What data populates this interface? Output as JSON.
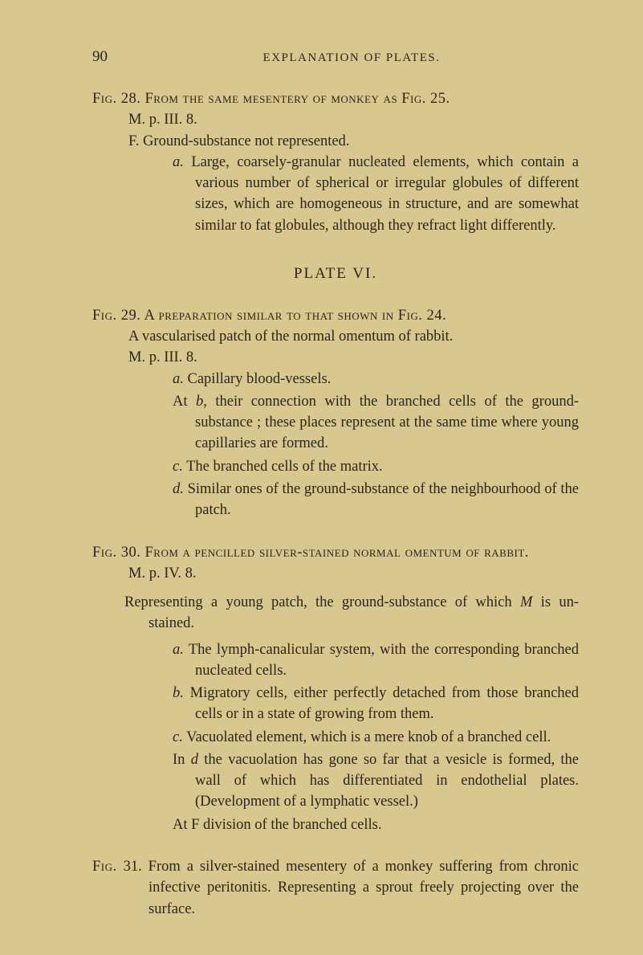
{
  "pageNumber": "90",
  "runningHead": "EXPLANATION OF PLATES.",
  "fig28": {
    "head": "Fig. 28.  From the same mesentery of monkey as Fig. 25.",
    "line2": "M. p. III. 8.",
    "lineF": "F.   Ground-substance not represented.",
    "itemA": "a.  Large, coarsely-granular nucleated elements, which contain a various number of spherical or irregular globules of different sizes, which are homogeneous in structure, and are somewhat similar to fat globules, although they refract light differently."
  },
  "plateTitle": "PLATE VI.",
  "fig29": {
    "head": "Fig. 29.   A preparation similar to that shown in Fig. 24.",
    "line2": "A vascularised patch of the normal omentum of rabbit.",
    "line3": "M. p. III. 8.",
    "itemA": "a.  Capillary blood-vessels.",
    "itemAtB": "At b, their connection with the branched cells of the ground-substance ; these places represent at the same time where young capillaries are formed.",
    "itemC": "c.  The branched cells of the matrix.",
    "itemD": "d.  Similar ones of the ground-substance of the neighbourhood of the patch."
  },
  "fig30": {
    "head": "Fig. 30.   From a pencilled silver-stained normal omentum of rabbit.",
    "line2": "M. p. IV. 8.",
    "rep": "Representing a young patch, the ground-substance of which M is un-stained.",
    "itemA": "a.  The lymph-canalicular system, with the corresponding branched nucleated cells.",
    "itemB": "b.  Migratory cells, either perfectly detached from those branched cells or in a state of growing from them.",
    "itemC": "c.  Vacuolated element, which is a mere knob of a branched cell.",
    "itemIn": "In d the vacuolation has gone so far that a vesicle is formed, the wall of which has differentiated in endothelial plates. (Development of a lymphatic vessel.)",
    "itemAtF": "At F division of the branched cells."
  },
  "fig31": {
    "text": "Fig. 31.  From a silver-stained mesentery of a monkey suffering from chronic infective peritonitis. Representing a sprout freely projecting over the surface."
  },
  "style": {
    "background_color": "#d8c88f",
    "text_color": "#2a2518",
    "body_fontsize": 18.5,
    "head_fontsize": 15,
    "pagenum_fontsize": 19
  }
}
